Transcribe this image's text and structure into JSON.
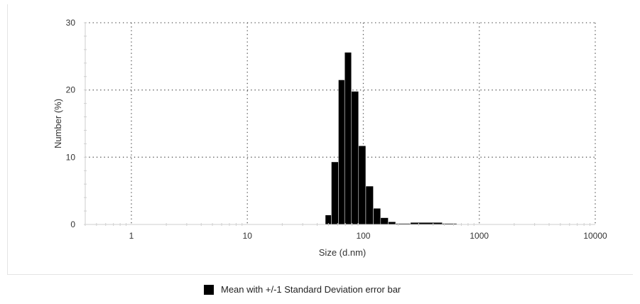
{
  "chart_data": {
    "type": "bar",
    "xscale": "log",
    "xlim": [
      0.4,
      10000
    ],
    "ylim": [
      0,
      30
    ],
    "xticks": [
      1,
      10,
      100,
      1000,
      10000
    ],
    "xtick_labels": [
      "1",
      "10",
      "100",
      "1000",
      "10000"
    ],
    "yticks": [
      0,
      10,
      20,
      30
    ],
    "ytick_labels": [
      "0",
      "10",
      "20",
      "30"
    ],
    "xlabel": "Size (d.nm)",
    "ylabel": "Number (%)",
    "grid": true,
    "legend_position": "bottom-center",
    "series": [
      {
        "name": "Mean with +/-1 Standard Deviation error bar",
        "color": "#000000",
        "bins": [
          {
            "from": 47,
            "to": 53,
            "value": 1.4
          },
          {
            "from": 53,
            "to": 61,
            "value": 9.3
          },
          {
            "from": 61,
            "to": 69,
            "value": 21.5
          },
          {
            "from": 69,
            "to": 79,
            "value": 25.6
          },
          {
            "from": 79,
            "to": 91,
            "value": 19.8
          },
          {
            "from": 91,
            "to": 105,
            "value": 11.7
          },
          {
            "from": 105,
            "to": 122,
            "value": 5.7
          },
          {
            "from": 122,
            "to": 141,
            "value": 2.4
          },
          {
            "from": 141,
            "to": 164,
            "value": 1.0
          },
          {
            "from": 164,
            "to": 190,
            "value": 0.4
          },
          {
            "from": 190,
            "to": 255,
            "value": 0.15
          },
          {
            "from": 255,
            "to": 480,
            "value": 0.3
          },
          {
            "from": 480,
            "to": 640,
            "value": 0.15
          }
        ]
      }
    ]
  }
}
